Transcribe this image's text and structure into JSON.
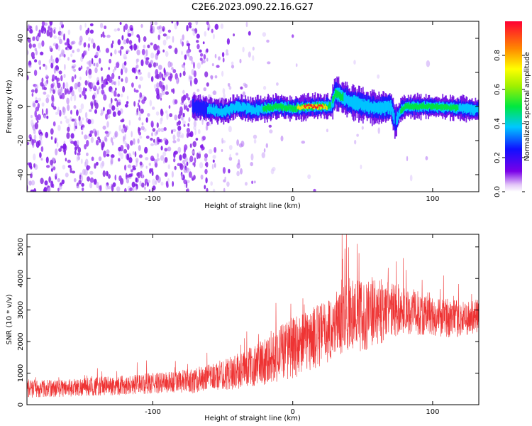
{
  "title": "C2E6.2023.090.22.16.G27",
  "chart_data": [
    {
      "type": "heatmap",
      "title": "C2E6.2023.090.22.16.G27",
      "xlabel": "Height of straight line (km)",
      "ylabel": "Frequency (Hz)",
      "xlim": [
        -190,
        133
      ],
      "ylim": [
        -50,
        50
      ],
      "x_ticks": [
        -100,
        0,
        100
      ],
      "y_ticks": [
        -40,
        -20,
        0,
        20,
        40
      ],
      "grid": false,
      "colorbar": {
        "label": "Normalized spectral amplitude",
        "range": [
          0.0,
          1.0
        ],
        "ticks": [
          0.0,
          0.2,
          0.4,
          0.6,
          0.8
        ],
        "tick_labels": [
          "0.0",
          "0.2",
          "0.4",
          "0.6",
          "0.8"
        ],
        "colormap": "rainbow (violet to red)"
      },
      "signal_track": {
        "description_points_x": [
          -72,
          -60,
          -50,
          -40,
          -30,
          -20,
          -10,
          0,
          10,
          20,
          27,
          30,
          40,
          50,
          60,
          70,
          73,
          76,
          80,
          100,
          120,
          133
        ],
        "frequency_hz": [
          0,
          -2,
          -3,
          0,
          -2,
          -1,
          0,
          -1,
          0,
          0,
          0,
          8,
          3,
          1,
          -1,
          0,
          -10,
          -3,
          0,
          0,
          -1,
          -2
        ],
        "peak_amplitude": [
          0.2,
          0.35,
          0.35,
          0.4,
          0.4,
          0.55,
          0.55,
          0.6,
          1.0,
          1.0,
          0.5,
          0.55,
          0.5,
          0.45,
          0.45,
          0.4,
          0.3,
          0.5,
          0.6,
          0.7,
          0.5,
          0.45
        ]
      }
    },
    {
      "type": "line",
      "xlabel": "Height of straight line (km)",
      "ylabel": "SNR (10 * v/v)",
      "xlim": [
        -190,
        133
      ],
      "ylim": [
        0,
        5400
      ],
      "x_ticks": [
        -100,
        0,
        100
      ],
      "y_ticks": [
        0,
        1000,
        2000,
        3000,
        4000,
        5000
      ],
      "grid": false,
      "series": [
        {
          "color": "#ee3333",
          "x": [
            -190,
            -170,
            -150,
            -130,
            -110,
            -90,
            -70,
            -60,
            -50,
            -40,
            -30,
            -20,
            -10,
            0,
            10,
            20,
            30,
            40,
            50,
            60,
            70,
            80,
            90,
            100,
            110,
            120,
            133
          ],
          "y_mean": [
            500,
            520,
            560,
            600,
            650,
            700,
            760,
            850,
            950,
            1050,
            1200,
            1400,
            1650,
            1800,
            2000,
            2200,
            2500,
            2800,
            2800,
            2900,
            3000,
            3000,
            2900,
            2800,
            2750,
            2700,
            2800
          ],
          "y_spread": [
            400,
            400,
            420,
            450,
            450,
            500,
            550,
            600,
            700,
            800,
            900,
            1100,
            1300,
            1400,
            1400,
            1500,
            1400,
            1700,
            1600,
            1500,
            1300,
            1100,
            1000,
            900,
            900,
            800,
            800
          ]
        }
      ]
    }
  ]
}
